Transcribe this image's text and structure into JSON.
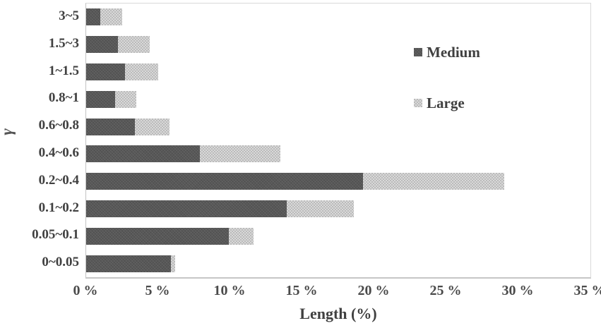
{
  "chart_data": {
    "type": "bar",
    "orientation": "horizontal",
    "stacked": true,
    "title": "",
    "xlabel": "Length (%)",
    "ylabel": "γ",
    "xlim": [
      0,
      35
    ],
    "xticks": [
      0,
      5,
      10,
      15,
      20,
      25,
      30,
      35
    ],
    "xtick_labels": [
      "0 %",
      "5 %",
      "10 %",
      "15 %",
      "20 %",
      "25 %",
      "30 %",
      "35 %"
    ],
    "grid": false,
    "legend_position": "inside-top-right",
    "categories": [
      "3~5",
      "1.5~3",
      "1~1.5",
      "0.8~1",
      "0.6~0.8",
      "0.4~0.6",
      "0.2~0.4",
      "0.1~0.2",
      "0.05~0.1",
      "0~0.05"
    ],
    "series": [
      {
        "name": "Medium",
        "color": "#595959",
        "values": [
          1.0,
          2.2,
          2.7,
          2.0,
          3.4,
          7.9,
          19.2,
          13.9,
          9.9,
          5.9
        ]
      },
      {
        "name": "Large",
        "color": "#c6c6c6",
        "values": [
          1.5,
          2.2,
          2.3,
          1.5,
          2.4,
          5.6,
          9.8,
          4.7,
          1.7,
          0.3
        ]
      }
    ]
  },
  "colors": {
    "text": "#404040",
    "axis_border": "#d9d9d9",
    "medium": "#595959",
    "large": "#c6c6c6",
    "background": "#ffffff"
  }
}
